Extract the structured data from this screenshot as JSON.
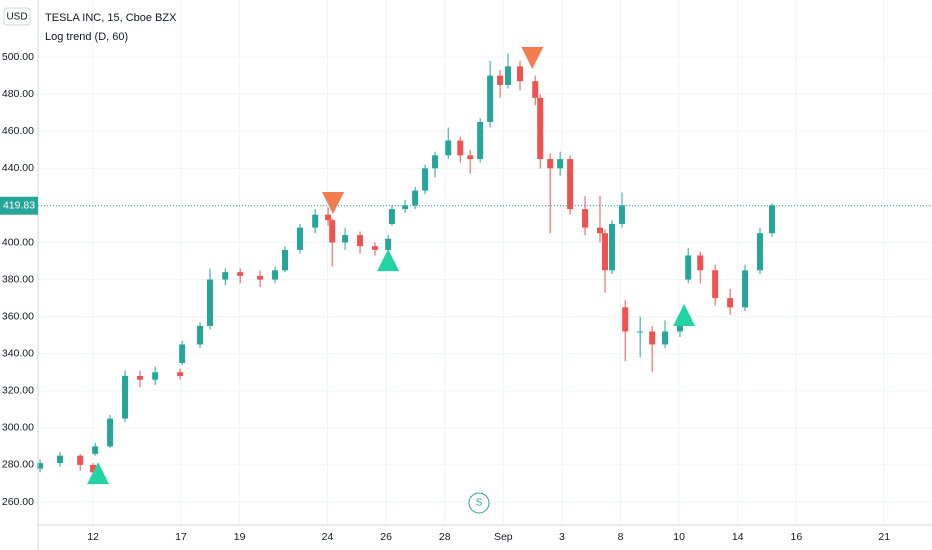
{
  "chart_data": {
    "type": "candlestick",
    "symbol": "TESLA INC, 15, Cboe BZX",
    "indicator": "Log trend (D, 60)",
    "currency": "USD",
    "session_marker": "S",
    "up_color": "#26a69a",
    "down_color": "#ef5350",
    "x": [
      -1.81,
      -1.13,
      -0.44,
      0,
      0.07,
      0.58,
      1.09,
      1.6,
      2.12,
      2.97,
      3.04,
      3.65,
      3.99,
      4.51,
      5.02,
      5.7,
      6.21,
      6.55,
      7.06,
      7.58,
      8.02,
      8.16,
      8.6,
      9.11,
      9.62,
      10.07,
      10.2,
      10.65,
      10.99,
      11.33,
      11.67,
      12.12,
      12.53,
      12.87,
      13.21,
      13.55,
      13.89,
      14.16,
      14.57,
      15.09,
      15.26,
      15.6,
      15.94,
      16.28,
      16.79,
      17.3,
      17.47,
      17.71,
      18.05,
      18.16,
      18.67,
      19.08,
      19.52,
      20.03,
      20.31,
      20.72,
      21.23,
      21.74,
      22.25,
      22.76,
      23.17
    ],
    "open": [
      278,
      281,
      285,
      280,
      286,
      290,
      305,
      328,
      326,
      330,
      335,
      345,
      355,
      380,
      384,
      382,
      380,
      385,
      396,
      408,
      415,
      412,
      400,
      404,
      398,
      396,
      410,
      418,
      420,
      428,
      440,
      447,
      455,
      447,
      445,
      465,
      490,
      485,
      495,
      487,
      478,
      445,
      440,
      445,
      418,
      408,
      405,
      385,
      410,
      365,
      352,
      352,
      345,
      352,
      380,
      393,
      385,
      370,
      365,
      385,
      405
    ],
    "high": [
      283,
      287,
      286,
      281,
      292,
      307,
      331,
      331,
      333,
      332,
      347,
      357,
      386,
      386,
      386,
      385,
      387,
      398,
      410,
      418,
      419,
      413,
      408,
      406,
      400,
      404,
      420,
      423,
      430,
      442,
      449,
      462,
      457,
      450,
      467,
      498,
      493,
      502,
      498,
      490,
      480,
      448,
      449,
      447,
      425,
      425,
      407,
      412,
      427,
      369,
      360,
      355,
      358,
      358,
      397,
      395,
      388,
      375,
      388,
      408,
      421
    ],
    "low": [
      276,
      279,
      277,
      273,
      285,
      289,
      303,
      322,
      323,
      326,
      334,
      343,
      353,
      377,
      378,
      376,
      378,
      384,
      394,
      405,
      409,
      387,
      396,
      394,
      393,
      395,
      409,
      416,
      418,
      426,
      435,
      445,
      443,
      437,
      443,
      462,
      478,
      483,
      482,
      474,
      440,
      405,
      436,
      415,
      404,
      400,
      373,
      383,
      408,
      336,
      338,
      330,
      343,
      349,
      378,
      378,
      366,
      361,
      363,
      383,
      403
    ],
    "close": [
      281,
      285,
      280,
      276,
      290,
      305,
      328,
      326,
      330,
      328,
      345,
      355,
      380,
      384,
      382,
      380,
      385,
      396,
      408,
      415,
      412,
      400,
      404,
      398,
      396,
      402,
      418,
      420,
      428,
      440,
      447,
      455,
      447,
      445,
      465,
      490,
      485,
      495,
      487,
      478,
      445,
      440,
      445,
      418,
      408,
      405,
      385,
      410,
      420,
      352,
      352,
      345,
      352,
      356,
      393,
      385,
      370,
      365,
      385,
      405,
      420
    ],
    "up_markers": {
      "color": "#22d3a6",
      "x": [
        0.17,
        10.07,
        20.17
      ],
      "y": [
        275.6,
        390.5,
        360.9
      ]
    },
    "down_markers": {
      "color": "#f57c4e",
      "x": [
        8.19,
        14.99
      ],
      "y": [
        421.3,
        499.5
      ]
    },
    "last_price": 419.83,
    "xlim": [
      -1.88,
      28.63
    ],
    "ylim": [
      247.6,
      530.8
    ],
    "xticks": [
      {
        "value": 0,
        "label": "12"
      },
      {
        "value": 3,
        "label": "17"
      },
      {
        "value": 5,
        "label": "19"
      },
      {
        "value": 8,
        "label": "24"
      },
      {
        "value": 10,
        "label": "26"
      },
      {
        "value": 12,
        "label": "28"
      },
      {
        "value": 14,
        "label": "Sep"
      },
      {
        "value": 16,
        "label": "3"
      },
      {
        "value": 18,
        "label": "8"
      },
      {
        "value": 20,
        "label": "10"
      },
      {
        "value": 22,
        "label": "14"
      },
      {
        "value": 24,
        "label": "16"
      },
      {
        "value": 27,
        "label": "21"
      }
    ],
    "yticks": [
      {
        "value": 260,
        "label": "260.00"
      },
      {
        "value": 280,
        "label": "280.00"
      },
      {
        "value": 300,
        "label": "300.00"
      },
      {
        "value": 320,
        "label": "320.00"
      },
      {
        "value": 340,
        "label": "340.00"
      },
      {
        "value": 360,
        "label": "360.00"
      },
      {
        "value": 380,
        "label": "380.00"
      },
      {
        "value": 400,
        "label": "400.00"
      },
      {
        "value": 420,
        "label": "420.00"
      },
      {
        "value": 440,
        "label": "440.00"
      },
      {
        "value": 460,
        "label": "460.00"
      },
      {
        "value": 480,
        "label": "480.00"
      },
      {
        "value": 500,
        "label": "500.00"
      }
    ],
    "grid": true
  }
}
